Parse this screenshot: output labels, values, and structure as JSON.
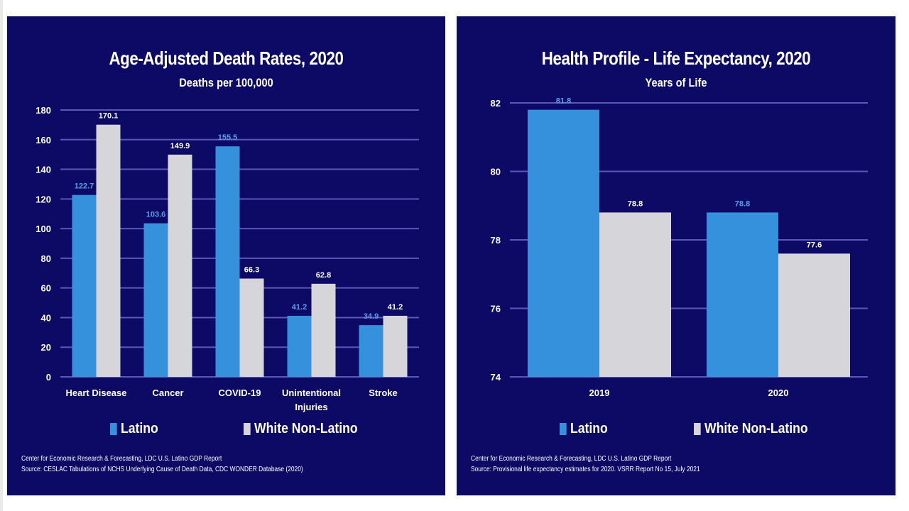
{
  "colors": {
    "background": "#0c0a64",
    "latino": "#3591dc",
    "white_non_latino": "#d6d5d9",
    "gridline": "#5a58b4",
    "latino_label": "#5aa0e6",
    "text": "#ffffff"
  },
  "chart_data": [
    {
      "type": "bar",
      "title": "Age-Adjusted Death Rates, 2020",
      "subtitle": "Deaths per 100,000",
      "xlabel": "",
      "ylabel": "",
      "categories": [
        "Heart Disease",
        "Cancer",
        "COVID-19",
        "Unintentional Injuries",
        "Stroke"
      ],
      "category_lines": [
        [
          "Heart Disease"
        ],
        [
          "Cancer"
        ],
        [
          "COVID-19"
        ],
        [
          "Unintentional",
          "Injuries"
        ],
        [
          "Stroke"
        ]
      ],
      "series": [
        {
          "name": "Latino",
          "values": [
            122.7,
            103.6,
            155.5,
            41.2,
            34.9
          ]
        },
        {
          "name": "White Non-Latino",
          "values": [
            170.1,
            149.9,
            66.3,
            62.8,
            41.2
          ]
        }
      ],
      "ylim": [
        0,
        180
      ],
      "yticks": [
        0,
        20,
        40,
        60,
        80,
        100,
        120,
        140,
        160,
        180
      ],
      "grid": true,
      "legend": "bottom",
      "footer": [
        "Center for Economic Research & Forecasting, LDC U.S. Latino GDP Report",
        "Source: CESLAC Tabulations of NCHS Underlying Cause of Death Data, CDC WONDER Database (2020)"
      ]
    },
    {
      "type": "bar",
      "title": "Health Profile - Life Expectancy, 2020",
      "subtitle": "Years of Life",
      "xlabel": "",
      "ylabel": "",
      "categories": [
        "2019",
        "2020"
      ],
      "category_lines": [
        [
          "2019"
        ],
        [
          "2020"
        ]
      ],
      "series": [
        {
          "name": "Latino",
          "values": [
            81.8,
            78.8
          ]
        },
        {
          "name": "White Non-Latino",
          "values": [
            78.8,
            77.6
          ]
        }
      ],
      "ylim": [
        74,
        82
      ],
      "yticks": [
        74,
        76,
        78,
        80,
        82
      ],
      "grid": true,
      "legend": "bottom",
      "footer": [
        "Center for Economic Research & Forecasting, LDC U.S. Latino GDP Report",
        "Source: Provisional life expectancy estimates for 2020. VSRR Report No 15, July 2021"
      ]
    }
  ]
}
